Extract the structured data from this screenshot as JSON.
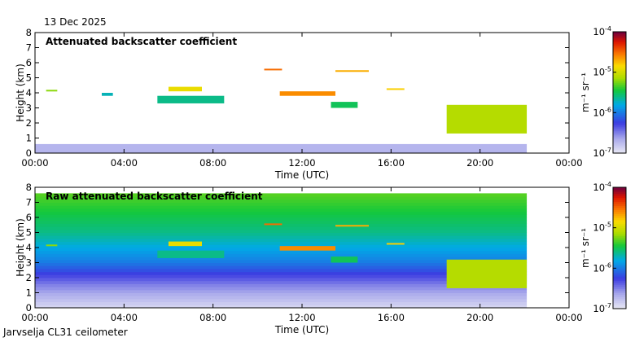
{
  "date": "13 Dec 2025",
  "footer": "Jarvselja CL31 ceilometer",
  "colorbar": {
    "top_label": "10",
    "labels": [
      {
        "base": "10",
        "exp": "-4"
      },
      {
        "base": "10",
        "exp": "-5"
      },
      {
        "base": "10",
        "exp": "-6"
      },
      {
        "base": "10",
        "exp": "-7"
      }
    ],
    "unit": "m⁻¹ sr⁻¹"
  },
  "chart_data": [
    {
      "type": "heatmap",
      "title": "Attenuated backscatter coefficient",
      "xlabel": "Time (UTC)",
      "ylabel": "Height (km)",
      "x_ticks": [
        "00:00",
        "04:00",
        "08:00",
        "12:00",
        "16:00",
        "20:00",
        "00:00"
      ],
      "y_ticks": [
        "0",
        "1",
        "2",
        "3",
        "4",
        "5",
        "6",
        "7",
        "8"
      ],
      "xlim_hours": [
        0,
        24
      ],
      "ylim_km": [
        0,
        8
      ],
      "data_end_hour": 22.1,
      "color_scale": "log",
      "clim": [
        1e-07,
        0.0001
      ],
      "features": [
        {
          "name": "boundary-layer-noise",
          "t0": 0.0,
          "t1": 22.1,
          "h0": 0.0,
          "h1": 0.6,
          "level": -6.7
        },
        {
          "name": "cloud-0040",
          "t0": 0.5,
          "t1": 1.0,
          "h0": 4.1,
          "h1": 4.2,
          "level": -5.2
        },
        {
          "name": "cloud-0400",
          "t0": 3.0,
          "t1": 3.5,
          "h0": 3.8,
          "h1": 4.0,
          "level": -5.7
        },
        {
          "name": "cloud-0600",
          "t0": 6.0,
          "t1": 7.5,
          "h0": 4.1,
          "h1": 4.4,
          "level": -4.9
        },
        {
          "name": "cloud-0630",
          "t0": 5.5,
          "t1": 8.5,
          "h0": 3.3,
          "h1": 3.8,
          "level": -5.6
        },
        {
          "name": "cloud-1020",
          "t0": 10.3,
          "t1": 11.1,
          "h0": 5.5,
          "h1": 5.6,
          "level": -4.5
        },
        {
          "name": "cloud-1130",
          "t0": 11.0,
          "t1": 13.5,
          "h0": 3.8,
          "h1": 4.1,
          "level": -4.6
        },
        {
          "name": "cloud-1330",
          "t0": 13.3,
          "t1": 14.5,
          "h0": 3.0,
          "h1": 3.4,
          "level": -5.5
        },
        {
          "name": "cloud-1400",
          "t0": 13.5,
          "t1": 15.0,
          "h0": 5.4,
          "h1": 5.5,
          "level": -4.7
        },
        {
          "name": "cloud-1600",
          "t0": 15.8,
          "t1": 16.6,
          "h0": 4.2,
          "h1": 4.3,
          "level": -4.8
        },
        {
          "name": "cloud-1900",
          "t0": 18.5,
          "t1": 22.1,
          "h0": 1.3,
          "h1": 3.2,
          "level": -5.1
        }
      ]
    },
    {
      "type": "heatmap",
      "title": "Raw attenuated backscatter coefficient",
      "xlabel": "Time (UTC)",
      "ylabel": "Height (km)",
      "x_ticks": [
        "00:00",
        "04:00",
        "08:00",
        "12:00",
        "16:00",
        "20:00",
        "00:00"
      ],
      "y_ticks": [
        "0",
        "1",
        "2",
        "3",
        "4",
        "5",
        "6",
        "7",
        "8"
      ],
      "xlim_hours": [
        0,
        24
      ],
      "ylim_km": [
        0,
        8
      ],
      "data_end_hour": 22.1,
      "data_top_km": 7.6,
      "color_scale": "log",
      "clim": [
        1e-07,
        0.0001
      ],
      "background_profile": [
        {
          "h": 0.0,
          "level": -6.9
        },
        {
          "h": 1.5,
          "level": -6.5
        },
        {
          "h": 3.0,
          "level": -6.0
        },
        {
          "h": 5.0,
          "level": -5.6
        },
        {
          "h": 7.6,
          "level": -5.3
        }
      ],
      "features": [
        {
          "name": "cloud-0040",
          "t0": 0.5,
          "t1": 1.0,
          "h0": 4.1,
          "h1": 4.2,
          "level": -5.2
        },
        {
          "name": "cloud-0600",
          "t0": 6.0,
          "t1": 7.5,
          "h0": 4.1,
          "h1": 4.4,
          "level": -4.9
        },
        {
          "name": "cloud-0630",
          "t0": 5.5,
          "t1": 8.5,
          "h0": 3.3,
          "h1": 3.8,
          "level": -5.6
        },
        {
          "name": "cloud-1020",
          "t0": 10.3,
          "t1": 11.1,
          "h0": 5.5,
          "h1": 5.6,
          "level": -4.5
        },
        {
          "name": "cloud-1130",
          "t0": 11.0,
          "t1": 13.5,
          "h0": 3.8,
          "h1": 4.1,
          "level": -4.6
        },
        {
          "name": "cloud-1330",
          "t0": 13.3,
          "t1": 14.5,
          "h0": 3.0,
          "h1": 3.4,
          "level": -5.5
        },
        {
          "name": "cloud-1400",
          "t0": 13.5,
          "t1": 15.0,
          "h0": 5.4,
          "h1": 5.5,
          "level": -4.7
        },
        {
          "name": "cloud-1600",
          "t0": 15.8,
          "t1": 16.6,
          "h0": 4.2,
          "h1": 4.3,
          "level": -4.8
        },
        {
          "name": "cloud-1900",
          "t0": 18.5,
          "t1": 22.1,
          "h0": 1.3,
          "h1": 3.2,
          "level": -5.1
        }
      ]
    }
  ]
}
